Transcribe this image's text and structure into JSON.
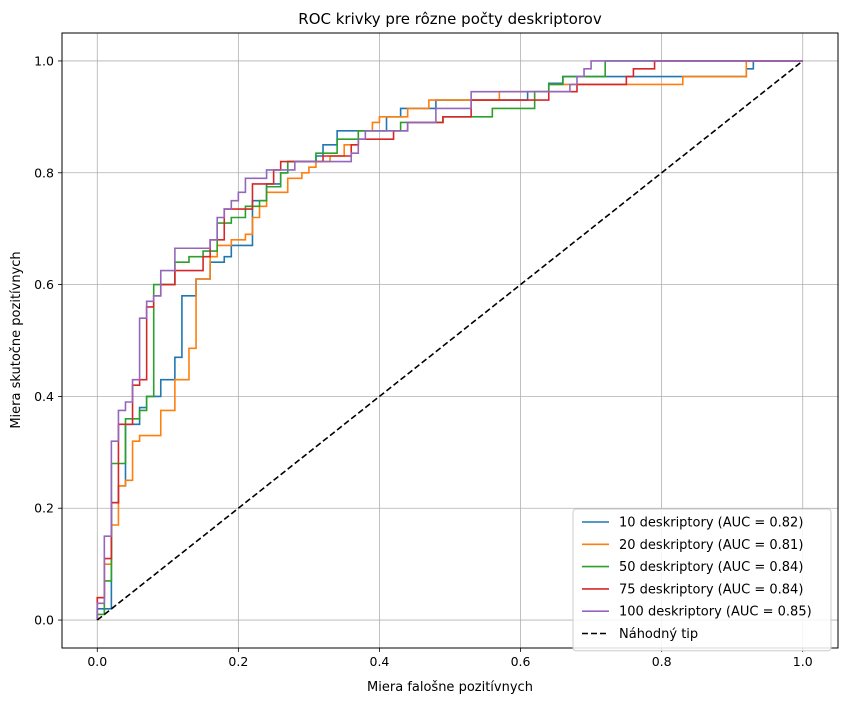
{
  "chart_data": {
    "type": "line",
    "title": "ROC krivky pre rôzne počty deskriptorov",
    "xlabel": "Miera falošne pozitívnych",
    "ylabel": "Miera skutočne pozitívnych",
    "xlim": [
      -0.05,
      1.05
    ],
    "ylim": [
      -0.05,
      1.05
    ],
    "xticks": [
      0.0,
      0.2,
      0.4,
      0.6,
      0.8,
      1.0
    ],
    "yticks": [
      0.0,
      0.2,
      0.4,
      0.6,
      0.8,
      1.0
    ],
    "xtick_labels": [
      "0.0",
      "0.2",
      "0.4",
      "0.6",
      "0.8",
      "1.0"
    ],
    "ytick_labels": [
      "0.0",
      "0.2",
      "0.4",
      "0.6",
      "0.8",
      "1.0"
    ],
    "grid": true,
    "legend_position": "bottom-right",
    "series": [
      {
        "name": "10 deskriptory (AUC = 0.82)",
        "color": "#1f77b4",
        "style": "step",
        "points": [
          [
            0,
            0
          ],
          [
            0,
            0.02
          ],
          [
            0.02,
            0.02
          ],
          [
            0.02,
            0.21
          ],
          [
            0.03,
            0.21
          ],
          [
            0.03,
            0.24
          ],
          [
            0.04,
            0.24
          ],
          [
            0.04,
            0.35
          ],
          [
            0.06,
            0.35
          ],
          [
            0.06,
            0.38
          ],
          [
            0.07,
            0.38
          ],
          [
            0.07,
            0.4
          ],
          [
            0.09,
            0.4
          ],
          [
            0.09,
            0.43
          ],
          [
            0.11,
            0.43
          ],
          [
            0.11,
            0.47
          ],
          [
            0.12,
            0.47
          ],
          [
            0.12,
            0.58
          ],
          [
            0.14,
            0.58
          ],
          [
            0.14,
            0.61
          ],
          [
            0.16,
            0.61
          ],
          [
            0.16,
            0.64
          ],
          [
            0.18,
            0.64
          ],
          [
            0.18,
            0.65
          ],
          [
            0.19,
            0.65
          ],
          [
            0.19,
            0.67
          ],
          [
            0.22,
            0.67
          ],
          [
            0.22,
            0.75
          ],
          [
            0.24,
            0.75
          ],
          [
            0.24,
            0.78
          ],
          [
            0.26,
            0.78
          ],
          [
            0.26,
            0.8
          ],
          [
            0.27,
            0.8
          ],
          [
            0.27,
            0.82
          ],
          [
            0.31,
            0.82
          ],
          [
            0.31,
            0.83
          ],
          [
            0.32,
            0.83
          ],
          [
            0.32,
            0.85
          ],
          [
            0.34,
            0.85
          ],
          [
            0.34,
            0.875
          ],
          [
            0.41,
            0.875
          ],
          [
            0.41,
            0.9
          ],
          [
            0.43,
            0.9
          ],
          [
            0.43,
            0.915
          ],
          [
            0.48,
            0.915
          ],
          [
            0.48,
            0.93
          ],
          [
            0.61,
            0.93
          ],
          [
            0.61,
            0.945
          ],
          [
            0.64,
            0.945
          ],
          [
            0.64,
            0.96
          ],
          [
            0.66,
            0.96
          ],
          [
            0.66,
            0.972
          ],
          [
            0.92,
            0.972
          ],
          [
            0.92,
            0.986
          ],
          [
            0.93,
            0.986
          ],
          [
            0.93,
            1.0
          ],
          [
            1.0,
            1.0
          ]
        ]
      },
      {
        "name": "20 deskriptory (AUC = 0.81)",
        "color": "#ff7f0e",
        "style": "step",
        "points": [
          [
            0,
            0
          ],
          [
            0,
            0.04
          ],
          [
            0.01,
            0.04
          ],
          [
            0.01,
            0.1
          ],
          [
            0.02,
            0.1
          ],
          [
            0.02,
            0.17
          ],
          [
            0.03,
            0.17
          ],
          [
            0.03,
            0.24
          ],
          [
            0.04,
            0.24
          ],
          [
            0.04,
            0.25
          ],
          [
            0.05,
            0.25
          ],
          [
            0.05,
            0.32
          ],
          [
            0.06,
            0.32
          ],
          [
            0.06,
            0.33
          ],
          [
            0.09,
            0.33
          ],
          [
            0.09,
            0.375
          ],
          [
            0.11,
            0.375
          ],
          [
            0.11,
            0.43
          ],
          [
            0.13,
            0.43
          ],
          [
            0.13,
            0.486
          ],
          [
            0.14,
            0.486
          ],
          [
            0.14,
            0.61
          ],
          [
            0.16,
            0.61
          ],
          [
            0.16,
            0.65
          ],
          [
            0.17,
            0.65
          ],
          [
            0.17,
            0.67
          ],
          [
            0.19,
            0.67
          ],
          [
            0.19,
            0.68
          ],
          [
            0.21,
            0.68
          ],
          [
            0.21,
            0.69
          ],
          [
            0.22,
            0.69
          ],
          [
            0.22,
            0.72
          ],
          [
            0.23,
            0.72
          ],
          [
            0.23,
            0.74
          ],
          [
            0.24,
            0.74
          ],
          [
            0.24,
            0.765
          ],
          [
            0.27,
            0.765
          ],
          [
            0.27,
            0.79
          ],
          [
            0.29,
            0.79
          ],
          [
            0.29,
            0.8
          ],
          [
            0.3,
            0.8
          ],
          [
            0.3,
            0.81
          ],
          [
            0.31,
            0.81
          ],
          [
            0.31,
            0.82
          ],
          [
            0.33,
            0.82
          ],
          [
            0.33,
            0.83
          ],
          [
            0.35,
            0.83
          ],
          [
            0.35,
            0.85
          ],
          [
            0.37,
            0.85
          ],
          [
            0.37,
            0.875
          ],
          [
            0.39,
            0.875
          ],
          [
            0.39,
            0.89
          ],
          [
            0.4,
            0.89
          ],
          [
            0.4,
            0.9
          ],
          [
            0.44,
            0.9
          ],
          [
            0.44,
            0.915
          ],
          [
            0.47,
            0.915
          ],
          [
            0.47,
            0.93
          ],
          [
            0.57,
            0.93
          ],
          [
            0.57,
            0.945
          ],
          [
            0.64,
            0.945
          ],
          [
            0.64,
            0.958
          ],
          [
            0.83,
            0.958
          ],
          [
            0.83,
            0.972
          ],
          [
            0.92,
            0.972
          ],
          [
            0.92,
            1.0
          ],
          [
            1.0,
            1.0
          ]
        ]
      },
      {
        "name": "50 deskriptory (AUC = 0.84)",
        "color": "#2ca02c",
        "style": "step",
        "points": [
          [
            0,
            0
          ],
          [
            0,
            0.01
          ],
          [
            0.01,
            0.01
          ],
          [
            0.01,
            0.07
          ],
          [
            0.02,
            0.07
          ],
          [
            0.02,
            0.28
          ],
          [
            0.04,
            0.28
          ],
          [
            0.04,
            0.36
          ],
          [
            0.06,
            0.36
          ],
          [
            0.06,
            0.375
          ],
          [
            0.07,
            0.375
          ],
          [
            0.07,
            0.4
          ],
          [
            0.08,
            0.4
          ],
          [
            0.08,
            0.6
          ],
          [
            0.11,
            0.6
          ],
          [
            0.11,
            0.64
          ],
          [
            0.13,
            0.64
          ],
          [
            0.13,
            0.65
          ],
          [
            0.15,
            0.65
          ],
          [
            0.15,
            0.66
          ],
          [
            0.17,
            0.66
          ],
          [
            0.17,
            0.71
          ],
          [
            0.19,
            0.71
          ],
          [
            0.19,
            0.72
          ],
          [
            0.21,
            0.72
          ],
          [
            0.21,
            0.74
          ],
          [
            0.23,
            0.74
          ],
          [
            0.23,
            0.75
          ],
          [
            0.24,
            0.75
          ],
          [
            0.24,
            0.775
          ],
          [
            0.26,
            0.775
          ],
          [
            0.26,
            0.8
          ],
          [
            0.27,
            0.8
          ],
          [
            0.27,
            0.82
          ],
          [
            0.31,
            0.82
          ],
          [
            0.31,
            0.835
          ],
          [
            0.34,
            0.835
          ],
          [
            0.34,
            0.86
          ],
          [
            0.37,
            0.86
          ],
          [
            0.37,
            0.875
          ],
          [
            0.43,
            0.875
          ],
          [
            0.43,
            0.89
          ],
          [
            0.49,
            0.89
          ],
          [
            0.49,
            0.9
          ],
          [
            0.56,
            0.9
          ],
          [
            0.56,
            0.915
          ],
          [
            0.62,
            0.915
          ],
          [
            0.62,
            0.945
          ],
          [
            0.64,
            0.945
          ],
          [
            0.64,
            0.958
          ],
          [
            0.66,
            0.958
          ],
          [
            0.66,
            0.972
          ],
          [
            0.72,
            0.972
          ],
          [
            0.72,
            1.0
          ],
          [
            1.0,
            1.0
          ]
        ]
      },
      {
        "name": "75 deskriptory (AUC = 0.84)",
        "color": "#d62728",
        "style": "step",
        "points": [
          [
            0,
            0
          ],
          [
            0,
            0.04
          ],
          [
            0.01,
            0.04
          ],
          [
            0.01,
            0.11
          ],
          [
            0.02,
            0.11
          ],
          [
            0.02,
            0.21
          ],
          [
            0.03,
            0.21
          ],
          [
            0.03,
            0.35
          ],
          [
            0.05,
            0.35
          ],
          [
            0.05,
            0.42
          ],
          [
            0.06,
            0.42
          ],
          [
            0.06,
            0.43
          ],
          [
            0.07,
            0.43
          ],
          [
            0.07,
            0.56
          ],
          [
            0.08,
            0.56
          ],
          [
            0.08,
            0.58
          ],
          [
            0.09,
            0.58
          ],
          [
            0.09,
            0.6
          ],
          [
            0.11,
            0.6
          ],
          [
            0.11,
            0.625
          ],
          [
            0.15,
            0.625
          ],
          [
            0.15,
            0.65
          ],
          [
            0.16,
            0.65
          ],
          [
            0.16,
            0.68
          ],
          [
            0.18,
            0.68
          ],
          [
            0.18,
            0.735
          ],
          [
            0.22,
            0.735
          ],
          [
            0.22,
            0.78
          ],
          [
            0.25,
            0.78
          ],
          [
            0.25,
            0.805
          ],
          [
            0.26,
            0.805
          ],
          [
            0.26,
            0.82
          ],
          [
            0.32,
            0.82
          ],
          [
            0.32,
            0.83
          ],
          [
            0.36,
            0.83
          ],
          [
            0.36,
            0.85
          ],
          [
            0.37,
            0.85
          ],
          [
            0.37,
            0.86
          ],
          [
            0.42,
            0.86
          ],
          [
            0.42,
            0.875
          ],
          [
            0.44,
            0.875
          ],
          [
            0.44,
            0.89
          ],
          [
            0.49,
            0.89
          ],
          [
            0.49,
            0.9
          ],
          [
            0.53,
            0.9
          ],
          [
            0.53,
            0.93
          ],
          [
            0.64,
            0.93
          ],
          [
            0.64,
            0.945
          ],
          [
            0.68,
            0.945
          ],
          [
            0.68,
            0.958
          ],
          [
            0.75,
            0.958
          ],
          [
            0.75,
            0.972
          ],
          [
            0.76,
            0.972
          ],
          [
            0.76,
            0.986
          ],
          [
            0.79,
            0.986
          ],
          [
            0.79,
            1.0
          ],
          [
            1.0,
            1.0
          ]
        ]
      },
      {
        "name": "100 deskriptory (AUC = 0.85)",
        "color": "#9467bd",
        "style": "step",
        "points": [
          [
            0,
            0
          ],
          [
            0,
            0.03
          ],
          [
            0.01,
            0.03
          ],
          [
            0.01,
            0.15
          ],
          [
            0.02,
            0.15
          ],
          [
            0.02,
            0.32
          ],
          [
            0.03,
            0.32
          ],
          [
            0.03,
            0.375
          ],
          [
            0.04,
            0.375
          ],
          [
            0.04,
            0.39
          ],
          [
            0.05,
            0.39
          ],
          [
            0.05,
            0.43
          ],
          [
            0.06,
            0.43
          ],
          [
            0.06,
            0.54
          ],
          [
            0.07,
            0.54
          ],
          [
            0.07,
            0.57
          ],
          [
            0.08,
            0.57
          ],
          [
            0.08,
            0.58
          ],
          [
            0.09,
            0.58
          ],
          [
            0.09,
            0.625
          ],
          [
            0.11,
            0.625
          ],
          [
            0.11,
            0.665
          ],
          [
            0.16,
            0.665
          ],
          [
            0.16,
            0.68
          ],
          [
            0.17,
            0.68
          ],
          [
            0.17,
            0.72
          ],
          [
            0.18,
            0.72
          ],
          [
            0.18,
            0.735
          ],
          [
            0.19,
            0.735
          ],
          [
            0.19,
            0.75
          ],
          [
            0.2,
            0.75
          ],
          [
            0.2,
            0.765
          ],
          [
            0.21,
            0.765
          ],
          [
            0.21,
            0.79
          ],
          [
            0.24,
            0.79
          ],
          [
            0.24,
            0.805
          ],
          [
            0.28,
            0.805
          ],
          [
            0.28,
            0.82
          ],
          [
            0.36,
            0.82
          ],
          [
            0.36,
            0.835
          ],
          [
            0.37,
            0.835
          ],
          [
            0.37,
            0.86
          ],
          [
            0.38,
            0.86
          ],
          [
            0.38,
            0.875
          ],
          [
            0.44,
            0.875
          ],
          [
            0.44,
            0.89
          ],
          [
            0.48,
            0.89
          ],
          [
            0.48,
            0.915
          ],
          [
            0.53,
            0.915
          ],
          [
            0.53,
            0.945
          ],
          [
            0.67,
            0.945
          ],
          [
            0.67,
            0.958
          ],
          [
            0.68,
            0.958
          ],
          [
            0.68,
            0.972
          ],
          [
            0.69,
            0.972
          ],
          [
            0.69,
            0.986
          ],
          [
            0.7,
            0.986
          ],
          [
            0.7,
            1.0
          ],
          [
            1.0,
            1.0
          ]
        ]
      },
      {
        "name": "Náhodný tip",
        "color": "#000000",
        "style": "dashed",
        "points": [
          [
            0,
            0
          ],
          [
            1,
            1
          ]
        ]
      }
    ]
  }
}
